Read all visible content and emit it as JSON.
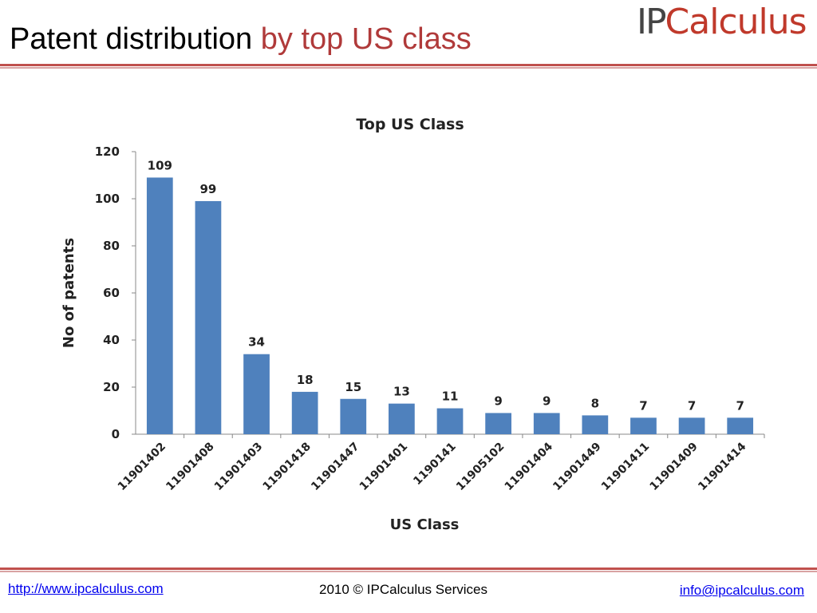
{
  "slide": {
    "title_main": "Patent distribution",
    "title_accent": "by top US class",
    "logo_ip": "IP",
    "logo_rest": "Calculus"
  },
  "footer": {
    "left_link": "http://www.ipcalculus.com",
    "center_text": "2010 © IPCalculus Services",
    "right_link": "info@ipcalculus.com"
  },
  "colors": {
    "bar": "#4f81bd",
    "title_accent": "#b03a3a",
    "rule": "#c0504d"
  },
  "chart_data": {
    "type": "bar",
    "title": "Top US Class",
    "xlabel": "US Class",
    "ylabel": "No of patents",
    "ylim": [
      0,
      120
    ],
    "yticks": [
      0,
      20,
      40,
      60,
      80,
      100,
      120
    ],
    "categories": [
      "11901402",
      "11901408",
      "11901403",
      "11901418",
      "11901447",
      "11901401",
      "1190141",
      "11905102",
      "11901404",
      "11901449",
      "11901411",
      "11901409",
      "11901414"
    ],
    "values": [
      109,
      99,
      34,
      18,
      15,
      13,
      11,
      9,
      9,
      8,
      7,
      7,
      7
    ],
    "grid": false,
    "legend": "none"
  }
}
